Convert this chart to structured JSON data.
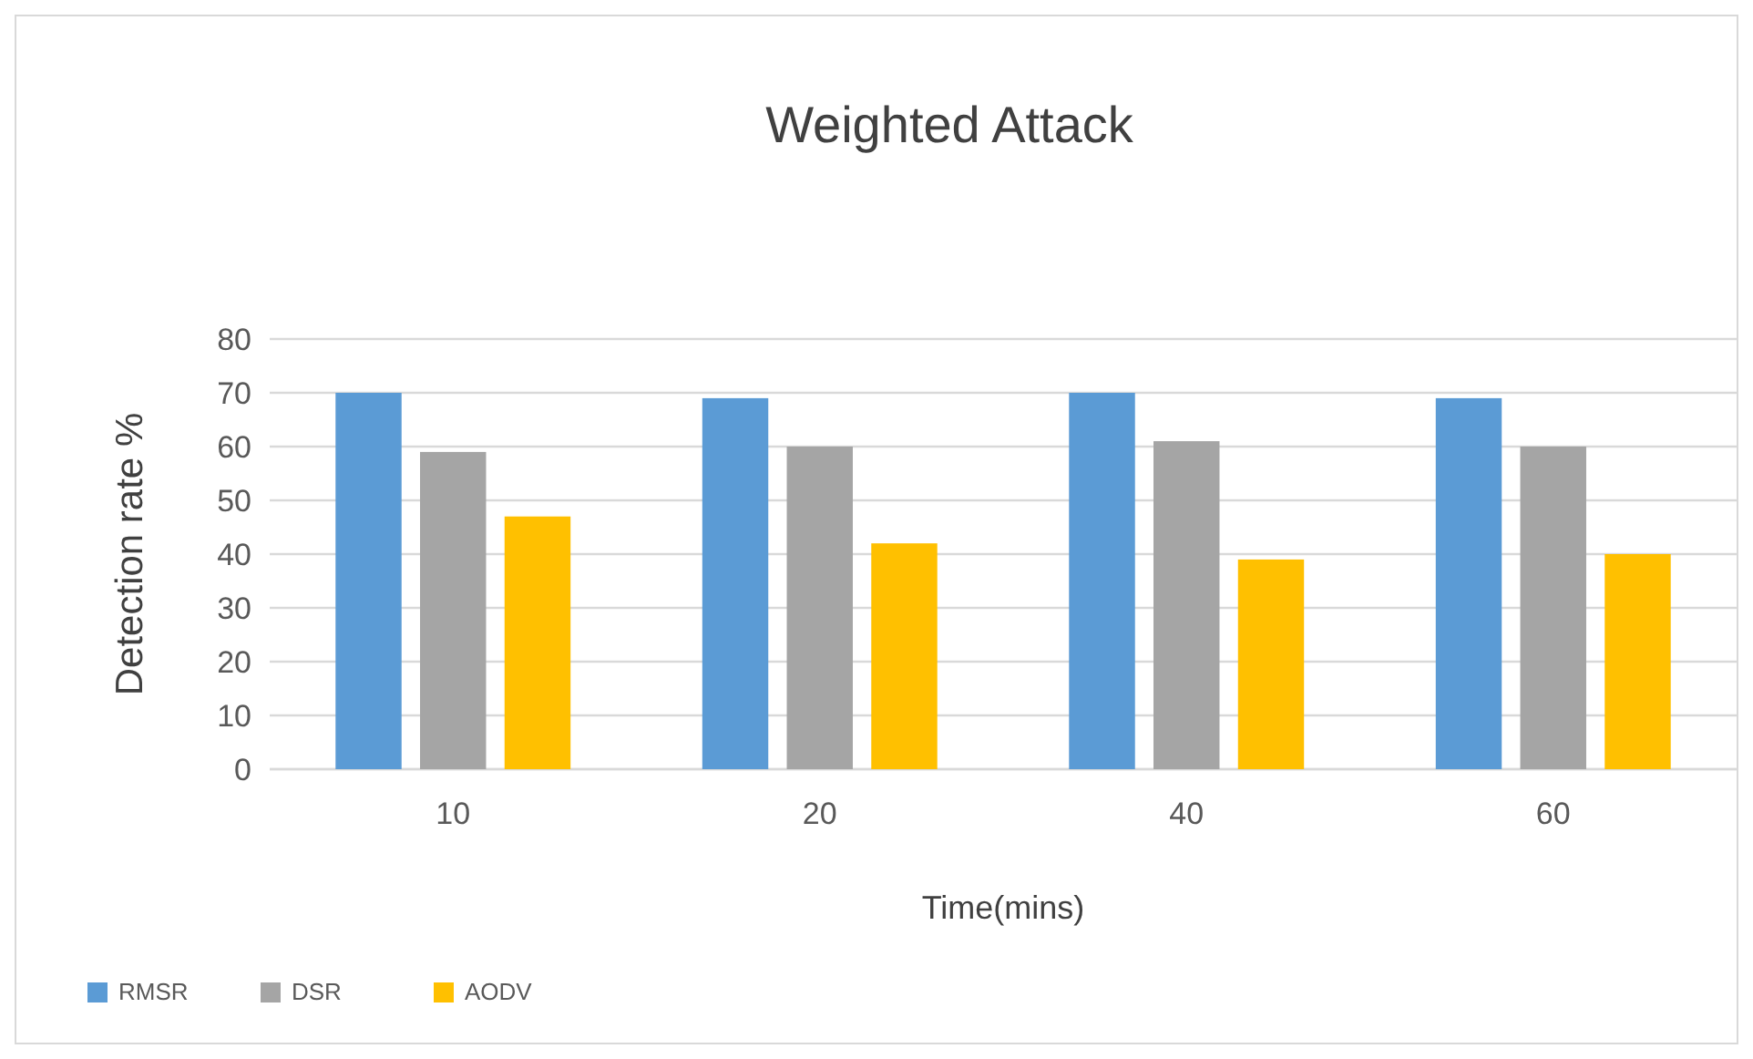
{
  "chart_data": {
    "type": "bar",
    "title": "Weighted Attack",
    "xlabel": "Time(mins)",
    "ylabel": "Detection rate %",
    "categories": [
      "10",
      "20",
      "40",
      "60"
    ],
    "series": [
      {
        "name": "RMSR",
        "color": "#5b9bd5",
        "values": [
          70,
          69,
          70,
          69
        ]
      },
      {
        "name": "DSR",
        "color": "#a5a5a5",
        "values": [
          59,
          60,
          61,
          60
        ]
      },
      {
        "name": "AODV",
        "color": "#ffc000",
        "values": [
          47,
          42,
          39,
          40
        ]
      }
    ],
    "ylim": [
      0,
      80
    ],
    "yticks": [
      0,
      10,
      20,
      30,
      40,
      50,
      60,
      70,
      80
    ],
    "grid": "y",
    "legend": "bottom left"
  }
}
